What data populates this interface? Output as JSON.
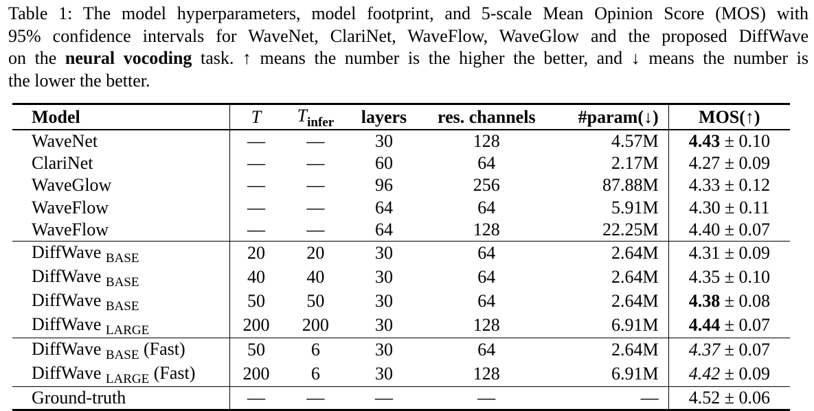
{
  "caption": {
    "line1": "Table 1: The model hyperparameters, model footprint, and 5-scale Mean Opinion Score (MOS) with",
    "line2": "95% confidence intervals for WaveNet, ClariNet, WaveFlow, WaveGlow and the proposed DiffWave",
    "line3_pre": "on the ",
    "line3_bold": "neural vocoding",
    "line3_post": " task. ↑ means the number is the higher the better, and ↓ means the number is",
    "line4": "the lower the better."
  },
  "headers": {
    "model": "Model",
    "T": "T",
    "T_infer_main": "T",
    "T_infer_sub": "infer",
    "layers": "layers",
    "res_channels": "res. channels",
    "param": "#param(↓)",
    "mos": "MOS(↑)"
  },
  "rows": [
    {
      "model": "WaveNet",
      "sub": "",
      "suffix": "",
      "T": "—",
      "Ti": "—",
      "layers": "30",
      "res": "128",
      "param": "4.57M",
      "mos_val": "4.43",
      "mos_ci": " ± 0.10"
    },
    {
      "model": "ClariNet",
      "sub": "",
      "suffix": "",
      "T": "—",
      "Ti": "—",
      "layers": "60",
      "res": "64",
      "param": "2.17M",
      "mos_val": "4.27",
      "mos_ci": " ± 0.09"
    },
    {
      "model": "WaveGlow",
      "sub": "",
      "suffix": "",
      "T": "—",
      "Ti": "—",
      "layers": "96",
      "res": "256",
      "param": "87.88M",
      "mos_val": "4.33",
      "mos_ci": " ± 0.12"
    },
    {
      "model": "WaveFlow",
      "sub": "",
      "suffix": "",
      "T": "—",
      "Ti": "—",
      "layers": "64",
      "res": "64",
      "param": "5.91M",
      "mos_val": "4.30",
      "mos_ci": " ± 0.11"
    },
    {
      "model": "WaveFlow",
      "sub": "",
      "suffix": "",
      "T": "—",
      "Ti": "—",
      "layers": "64",
      "res": "128",
      "param": "22.25M",
      "mos_val": "4.40",
      "mos_ci": " ± 0.07"
    },
    {
      "model": "DiffWave",
      "sub": "BASE",
      "suffix": "",
      "T": "20",
      "Ti": "20",
      "layers": "30",
      "res": "64",
      "param": "2.64M",
      "mos_val": "4.31",
      "mos_ci": " ± 0.09"
    },
    {
      "model": "DiffWave",
      "sub": "BASE",
      "suffix": "",
      "T": "40",
      "Ti": "40",
      "layers": "30",
      "res": "64",
      "param": "2.64M",
      "mos_val": "4.35",
      "mos_ci": " ± 0.10"
    },
    {
      "model": "DiffWave",
      "sub": "BASE",
      "suffix": "",
      "T": "50",
      "Ti": "50",
      "layers": "30",
      "res": "64",
      "param": "2.64M",
      "mos_val": "4.38",
      "mos_ci": " ± 0.08"
    },
    {
      "model": "DiffWave",
      "sub": "LARGE",
      "suffix": "",
      "T": "200",
      "Ti": "200",
      "layers": "30",
      "res": "128",
      "param": "6.91M",
      "mos_val": "4.44",
      "mos_ci": " ± 0.07"
    },
    {
      "model": "DiffWave",
      "sub": "BASE",
      "suffix": " (Fast)",
      "T": "50",
      "Ti": "6",
      "layers": "30",
      "res": "64",
      "param": "2.64M",
      "mos_val": "4.37",
      "mos_ci": " ± 0.07"
    },
    {
      "model": "DiffWave",
      "sub": "LARGE",
      "suffix": " (Fast)",
      "T": "200",
      "Ti": "6",
      "layers": "30",
      "res": "128",
      "param": "6.91M",
      "mos_val": "4.42",
      "mos_ci": " ± 0.09"
    },
    {
      "model": "Ground-truth",
      "sub": "",
      "suffix": "",
      "T": "—",
      "Ti": "—",
      "layers": "—",
      "res": "—",
      "param": "—",
      "mos_val": "4.52",
      "mos_ci": " ± 0.06"
    }
  ]
}
